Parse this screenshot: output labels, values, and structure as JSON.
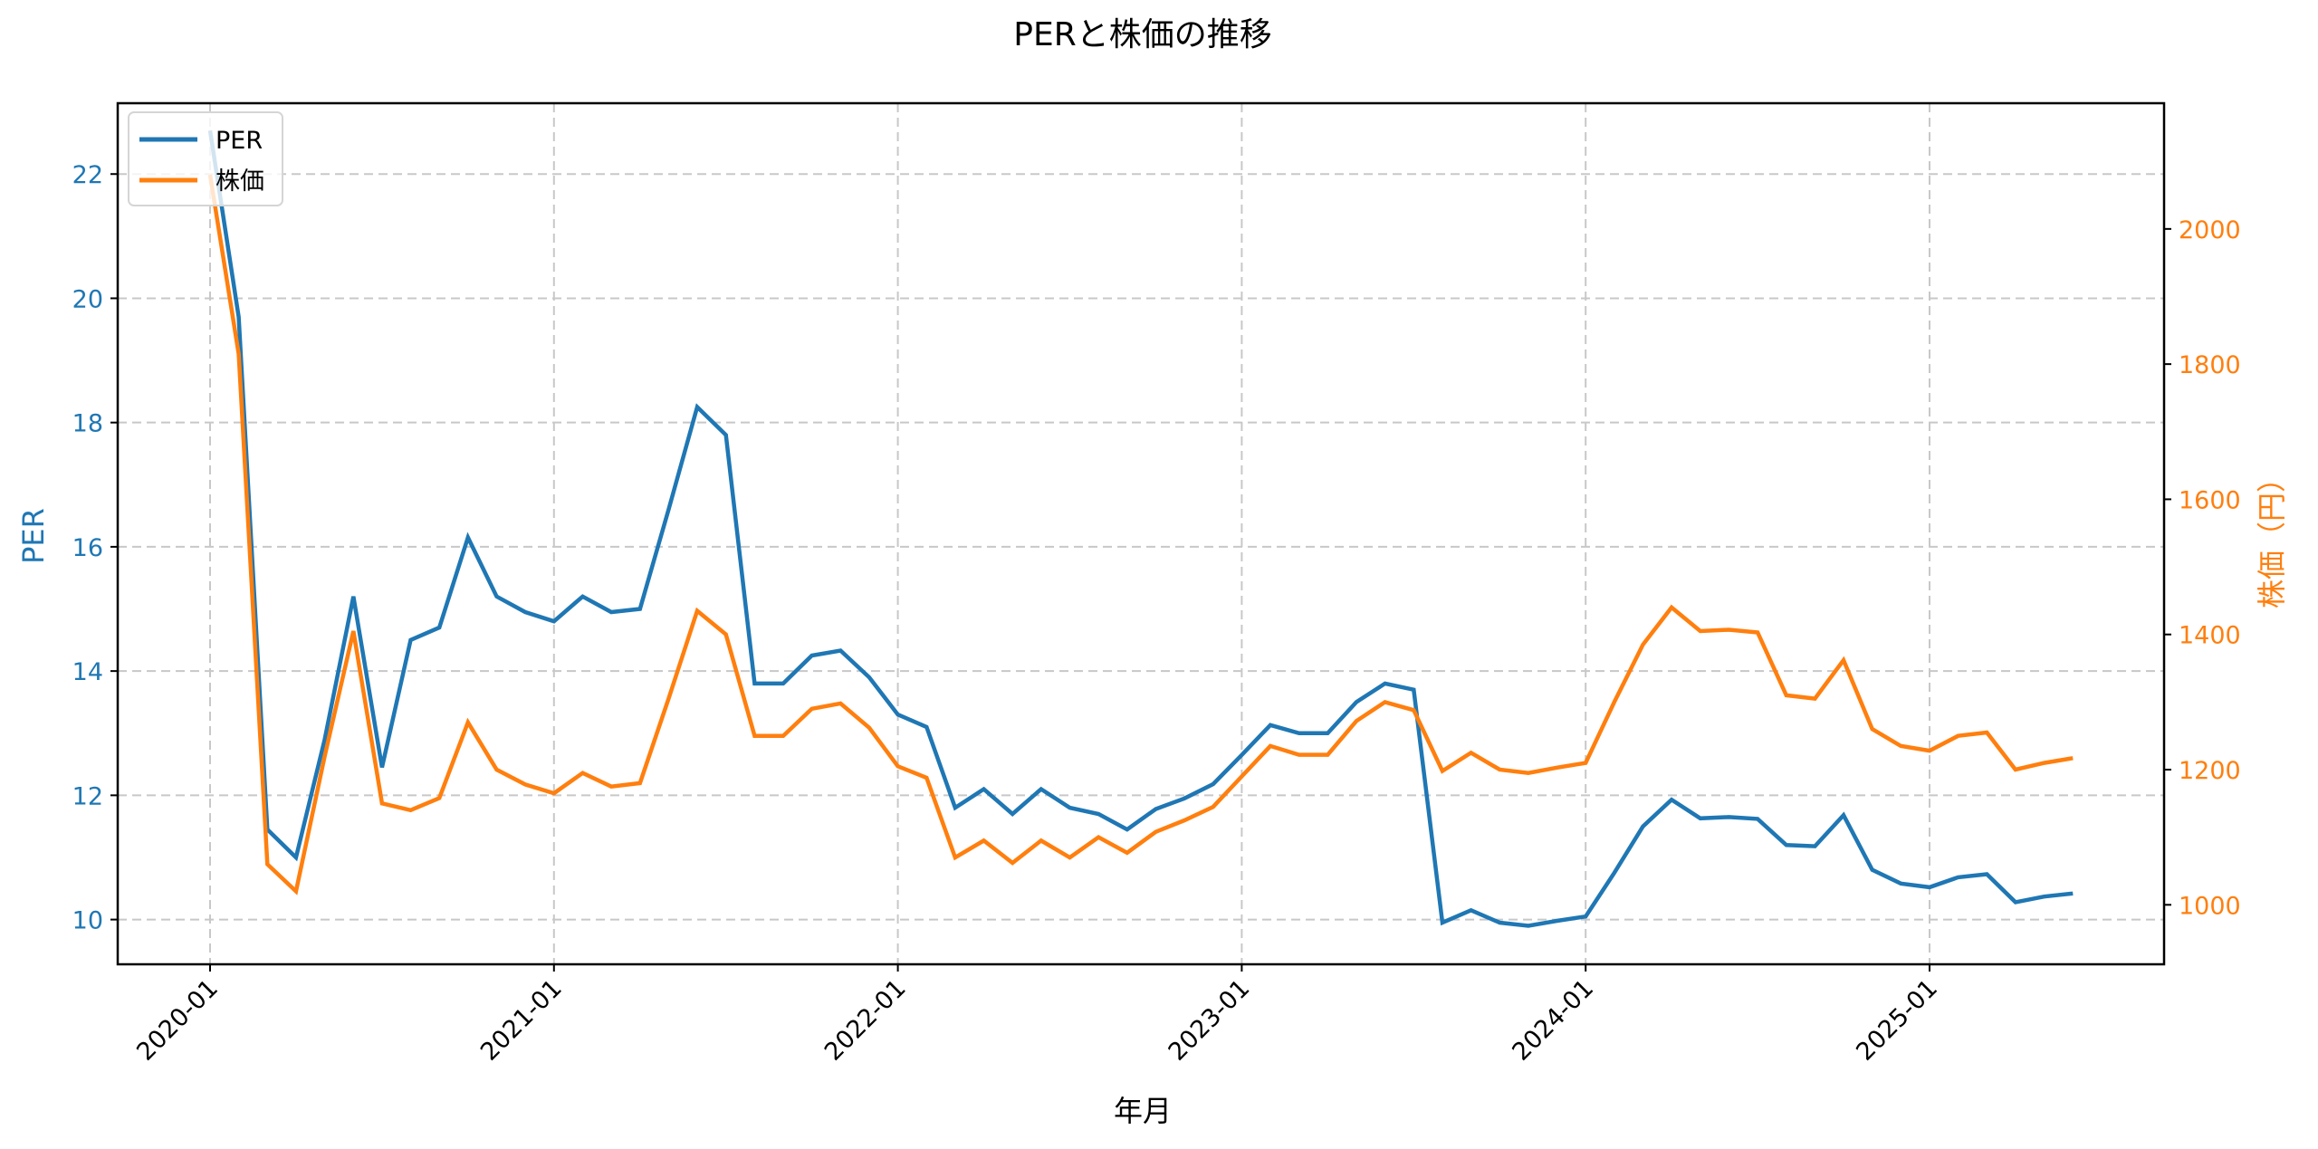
{
  "chart": {
    "title": "PERと株価の推移",
    "xlabel": "年月",
    "ylabel_left": "PER",
    "ylabel_right": "株価（円）",
    "legend": [
      {
        "label": "PER",
        "color": "#1f77b4"
      },
      {
        "label": "株価",
        "color": "#ff7f0e"
      }
    ],
    "colors": {
      "per": "#1f77b4",
      "price": "#ff7f0e",
      "grid": "#c8c8c8",
      "axis": "#000000"
    }
  },
  "chart_data": {
    "type": "line",
    "title": "PERと株価の推移",
    "xlabel": "年月",
    "ylabel": "PER",
    "ylabel_secondary": "株価（円）",
    "x_tick_labels": [
      "2020-01",
      "2021-01",
      "2022-01",
      "2023-01",
      "2024-01",
      "2025-01"
    ],
    "y_ticks_left": [
      10,
      12,
      14,
      16,
      18,
      20,
      22
    ],
    "y_ticks_right": [
      1000,
      1200,
      1400,
      1600,
      1800,
      2000
    ],
    "ylim": [
      9.28,
      23.14
    ],
    "ylim_secondary": [
      912,
      2186
    ],
    "grid": true,
    "legend_position": "upper left",
    "x": [
      "2020-01",
      "2020-02",
      "2020-03",
      "2020-04",
      "2020-05",
      "2020-06",
      "2020-07",
      "2020-08",
      "2020-09",
      "2020-10",
      "2020-11",
      "2020-12",
      "2021-01",
      "2021-02",
      "2021-03",
      "2021-04",
      "2021-05",
      "2021-06",
      "2021-07",
      "2021-08",
      "2021-09",
      "2021-10",
      "2021-11",
      "2021-12",
      "2022-01",
      "2022-02",
      "2022-03",
      "2022-04",
      "2022-05",
      "2022-06",
      "2022-07",
      "2022-08",
      "2022-09",
      "2022-10",
      "2022-11",
      "2022-12",
      "2023-01",
      "2023-02",
      "2023-03",
      "2023-04",
      "2023-05",
      "2023-06",
      "2023-07",
      "2023-08",
      "2023-09",
      "2023-10",
      "2023-11",
      "2023-12",
      "2024-01",
      "2024-02",
      "2024-03",
      "2024-04",
      "2024-05",
      "2024-06",
      "2024-07",
      "2024-08",
      "2024-09",
      "2024-10",
      "2024-11",
      "2024-12",
      "2025-01",
      "2025-02",
      "2025-03",
      "2025-04",
      "2025-05",
      "2025-06"
    ],
    "series": [
      {
        "name": "PER",
        "axis": "left",
        "color": "#1f77b4",
        "values": [
          22.7,
          19.7,
          11.45,
          11.0,
          12.9,
          15.2,
          12.45,
          14.5,
          14.7,
          16.15,
          15.2,
          14.95,
          14.8,
          15.2,
          14.95,
          15.0,
          16.6,
          18.25,
          17.8,
          13.8,
          13.8,
          14.25,
          14.33,
          13.9,
          13.3,
          13.1,
          11.8,
          12.1,
          11.7,
          12.1,
          11.8,
          11.7,
          11.45,
          11.78,
          11.95,
          12.18,
          12.65,
          13.13,
          13.0,
          13.0,
          13.5,
          13.8,
          13.7,
          9.95,
          10.15,
          9.95,
          9.9,
          9.98,
          10.05,
          10.75,
          11.5,
          11.93,
          11.63,
          11.65,
          11.62,
          11.2,
          11.18,
          11.68,
          10.8,
          10.58,
          10.52,
          10.68,
          10.73,
          10.28,
          10.37,
          10.42
        ]
      },
      {
        "name": "株価",
        "axis": "right",
        "color": "#ff7f0e",
        "values": [
          2080,
          1815,
          1060,
          1020,
          1220,
          1405,
          1150,
          1140,
          1158,
          1270,
          1200,
          1178,
          1165,
          1195,
          1175,
          1180,
          1305,
          1435,
          1400,
          1250,
          1250,
          1290,
          1298,
          1262,
          1205,
          1188,
          1070,
          1095,
          1062,
          1095,
          1070,
          1100,
          1077,
          1108,
          1125,
          1145,
          1190,
          1235,
          1222,
          1222,
          1272,
          1300,
          1288,
          1198,
          1225,
          1200,
          1195,
          1203,
          1210,
          1300,
          1385,
          1440,
          1405,
          1407,
          1403,
          1310,
          1305,
          1362,
          1260,
          1235,
          1228,
          1250,
          1255,
          1200,
          1210,
          1217
        ]
      }
    ]
  }
}
